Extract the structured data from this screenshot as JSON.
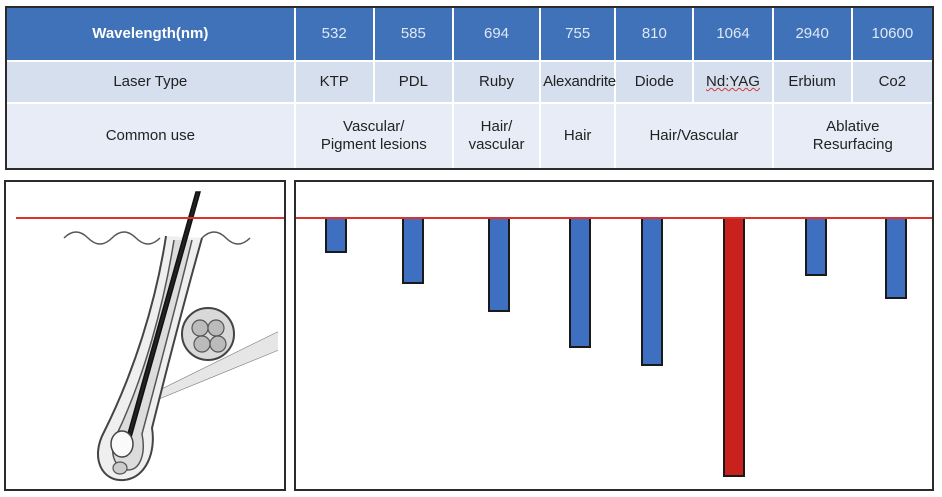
{
  "table": {
    "header_label": "Wavelength(nm)",
    "wavelengths": [
      "532",
      "585",
      "694",
      "755",
      "810",
      "1064",
      "2940",
      "10600"
    ],
    "laser_type_label": "Laser Type",
    "laser_types": [
      "KTP",
      "PDL",
      "Ruby",
      "Alexandrite",
      "Diode",
      "Nd:YAG",
      "Erbium",
      "Co2"
    ],
    "common_use_label": "Common use",
    "common_uses": [
      {
        "text": "Vascular/ Pigment lesions",
        "span": 2
      },
      {
        "text": "Hair/ vascular",
        "span": 1
      },
      {
        "text": "Hair",
        "span": 1
      },
      {
        "text": "Hair/Vascular",
        "span": 2
      },
      {
        "text": "Ablative Resurfacing",
        "span": 2
      }
    ]
  },
  "colors": {
    "header_blue": "#3f72b8",
    "bar_blue": "#3f6fc0",
    "bar_red": "#c8211e",
    "skin_line": "#d8342c"
  },
  "chart_data": {
    "type": "bar",
    "categories": [
      "KTP",
      "PDL",
      "Ruby",
      "Alexandrite",
      "Diode",
      "Nd:YAG",
      "Erbium",
      "Co2"
    ],
    "values": [
      0.13,
      0.25,
      0.36,
      0.5,
      0.57,
      1.0,
      0.22,
      0.31
    ],
    "highlight": "Nd:YAG",
    "orientation": "downward from skin surface"
  }
}
